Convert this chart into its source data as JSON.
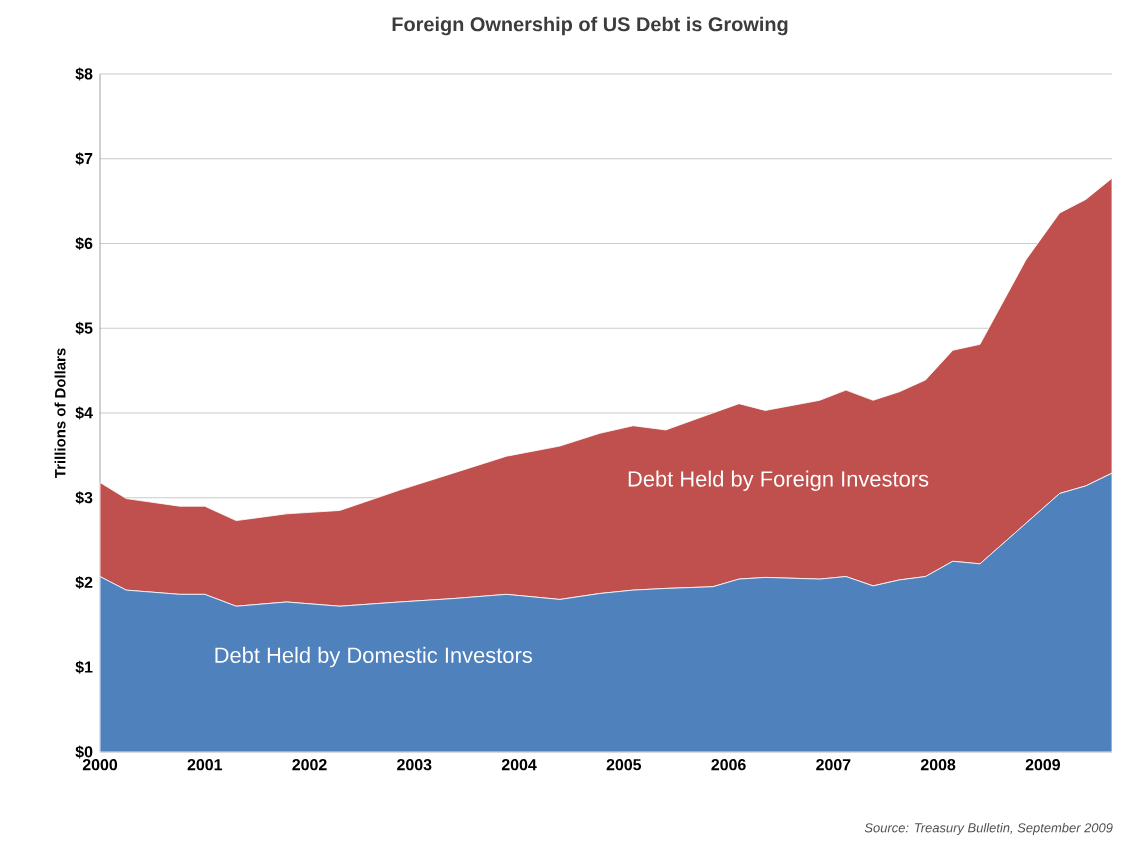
{
  "chart_data": {
    "type": "area",
    "stacked": true,
    "title": "Foreign Ownership of US Debt is Growing",
    "ylabel": "Trillions of Dollars",
    "x": [
      2000.0,
      2000.25,
      2000.76,
      2001.0,
      2001.3,
      2001.78,
      2002.29,
      2002.86,
      2003.37,
      2003.88,
      2004.39,
      2004.77,
      2005.09,
      2005.4,
      2005.85,
      2006.1,
      2006.35,
      2006.87,
      2007.12,
      2007.38,
      2007.63,
      2007.88,
      2008.14,
      2008.4,
      2008.84,
      2009.16,
      2009.41,
      2009.66
    ],
    "series": [
      {
        "name": "Debt Held by Domestic Investors",
        "color": "#4f81bd",
        "values": [
          2.07,
          1.91,
          1.86,
          1.86,
          1.72,
          1.77,
          1.72,
          1.77,
          1.81,
          1.86,
          1.8,
          1.87,
          1.91,
          1.93,
          1.95,
          2.04,
          2.06,
          2.04,
          2.07,
          1.96,
          2.03,
          2.07,
          2.25,
          2.22,
          2.7,
          3.05,
          3.14,
          3.29
        ]
      },
      {
        "name": "Debt Held by Foreign Investors",
        "color": "#c0504d",
        "values": [
          1.11,
          1.08,
          1.04,
          1.04,
          1.01,
          1.04,
          1.13,
          1.32,
          1.48,
          1.63,
          1.81,
          1.89,
          1.94,
          1.87,
          2.05,
          2.07,
          1.97,
          2.11,
          2.2,
          2.19,
          2.22,
          2.32,
          2.49,
          2.59,
          3.11,
          3.31,
          3.38,
          3.48
        ]
      }
    ],
    "xlim": [
      2000,
      2009.66
    ],
    "xticks": [
      2000,
      2001,
      2002,
      2003,
      2004,
      2005,
      2006,
      2007,
      2008,
      2009
    ],
    "ylim": [
      0,
      8
    ],
    "yticks": [
      {
        "value": 0,
        "label": "$0"
      },
      {
        "value": 1,
        "label": "$1"
      },
      {
        "value": 2,
        "label": "$2"
      },
      {
        "value": 3,
        "label": "$3"
      },
      {
        "value": 4,
        "label": "$4"
      },
      {
        "value": 5,
        "label": "$5"
      },
      {
        "value": 6,
        "label": "$6"
      },
      {
        "value": 7,
        "label": "$7"
      },
      {
        "value": 8,
        "label": "$8"
      }
    ],
    "grid": "y",
    "legend": false,
    "annotations": [
      "Source: Treasury Bulletin, September 2009"
    ]
  }
}
